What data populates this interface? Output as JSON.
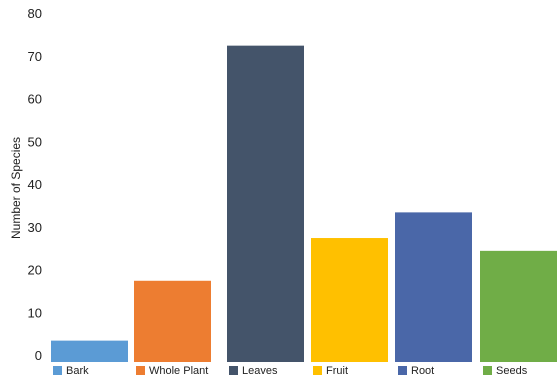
{
  "chart_data": {
    "type": "bar",
    "title": "",
    "xlabel": "",
    "ylabel": "Number of Species",
    "ylim": [
      0,
      80
    ],
    "yticks": [
      0,
      10,
      20,
      30,
      40,
      50,
      60,
      70,
      80
    ],
    "grid": false,
    "legend_position": "bottom",
    "categories": [
      "Bark",
      "Whole Plant",
      "Leaves",
      "Fruit",
      "Root",
      "Seeds"
    ],
    "values": [
      5,
      19,
      74,
      29,
      35,
      26
    ],
    "colors": [
      "#5b9bd5",
      "#ed7d31",
      "#44546a",
      "#ffc000",
      "#4a67a8",
      "#70ad47"
    ]
  }
}
